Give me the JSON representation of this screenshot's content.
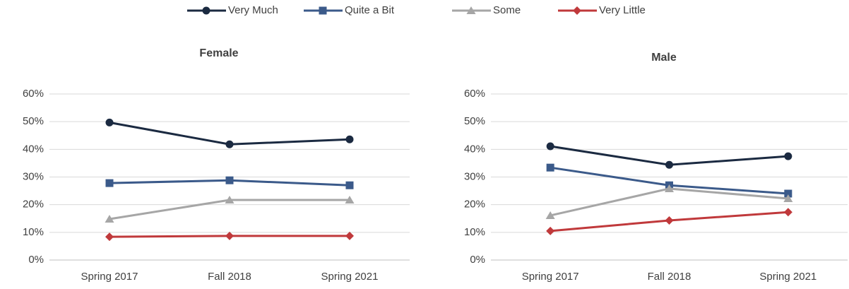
{
  "legend": {
    "series": [
      {
        "name": "Very Much",
        "color": "#1b2a41",
        "marker": "circle"
      },
      {
        "name": "Quite a Bit",
        "color": "#3b5a8a",
        "marker": "square"
      },
      {
        "name": "Some",
        "color": "#a6a6a6",
        "marker": "triangle"
      },
      {
        "name": "Very Little",
        "color": "#c0393b",
        "marker": "diamond"
      }
    ]
  },
  "chart_data": [
    {
      "type": "line",
      "title": "Female",
      "categories": [
        "Spring 2017",
        "Fall 2018",
        "Spring 2021"
      ],
      "series": [
        {
          "values": [
            49.7,
            41.8,
            43.6
          ]
        },
        {
          "values": [
            27.8,
            28.8,
            27.0
          ]
        },
        {
          "values": [
            14.8,
            21.7,
            21.7
          ]
        },
        {
          "values": [
            8.4,
            8.7,
            8.7
          ]
        }
      ],
      "ylim": [
        0,
        60
      ],
      "yticks": [
        {
          "value": 0,
          "label": "0%"
        },
        {
          "value": 10,
          "label": "10%"
        },
        {
          "value": 20,
          "label": "20%"
        },
        {
          "value": 30,
          "label": "30%"
        },
        {
          "value": 40,
          "label": "40%"
        },
        {
          "value": 50,
          "label": "50%"
        },
        {
          "value": 60,
          "label": "60%"
        }
      ],
      "grid": true
    },
    {
      "type": "line",
      "title": "Male",
      "categories": [
        "Spring 2017",
        "Fall 2018",
        "Spring 2021"
      ],
      "series": [
        {
          "values": [
            41.1,
            34.4,
            37.5
          ]
        },
        {
          "values": [
            33.4,
            27.0,
            24.0
          ]
        },
        {
          "values": [
            16.1,
            25.8,
            22.2
          ]
        },
        {
          "values": [
            10.5,
            14.3,
            17.3
          ]
        }
      ],
      "ylim": [
        0,
        60
      ],
      "yticks": [
        {
          "value": 0,
          "label": "0%"
        },
        {
          "value": 10,
          "label": "10%"
        },
        {
          "value": 20,
          "label": "20%"
        },
        {
          "value": 30,
          "label": "30%"
        },
        {
          "value": 40,
          "label": "40%"
        },
        {
          "value": 50,
          "label": "50%"
        },
        {
          "value": 60,
          "label": "60%"
        }
      ],
      "grid": true
    }
  ]
}
